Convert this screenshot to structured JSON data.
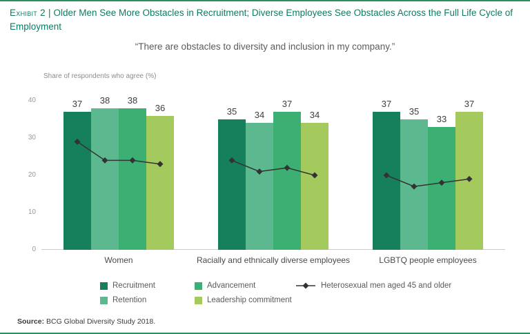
{
  "page": {
    "exhibit_label": "Exhibit 2",
    "separator": "|",
    "title": "Older Men See More Obstacles in Recruitment; Diverse Employees See Obstacles Across the Full Life Cycle of Employment",
    "title_color": "#0e7b61",
    "accent_color": "#2e8f5e",
    "source_label": "Source:",
    "source_text": " BCG Global Diversity Study 2018."
  },
  "chart_data": {
    "type": "bar",
    "title": "“There are obstacles to diversity and inclusion in my company.”",
    "ylabel": "Share of respondents who agree (%)",
    "ylim": [
      0,
      40
    ],
    "yticks": [
      0,
      10,
      20,
      30,
      40
    ],
    "grid": false,
    "legend_position": "bottom",
    "categories": [
      "Women",
      "Racially and ethnically diverse employees",
      "LGBTQ people employees"
    ],
    "bar_series": [
      {
        "name": "Recruitment",
        "color": "#15805b",
        "values": [
          37,
          35,
          37
        ]
      },
      {
        "name": "Retention",
        "color": "#5cb88f",
        "values": [
          38,
          34,
          35
        ]
      },
      {
        "name": "Advancement",
        "color": "#3caf72",
        "values": [
          38,
          37,
          33
        ]
      },
      {
        "name": "Leadership commitment",
        "color": "#a4ca5e",
        "values": [
          36,
          34,
          37
        ]
      }
    ],
    "line_series": {
      "name": "Heterosexual men aged 45 and older",
      "color": "#333333",
      "values": [
        [
          29,
          24,
          24,
          23
        ],
        [
          24,
          21,
          22,
          20
        ],
        [
          20,
          17,
          18,
          19
        ]
      ]
    }
  }
}
